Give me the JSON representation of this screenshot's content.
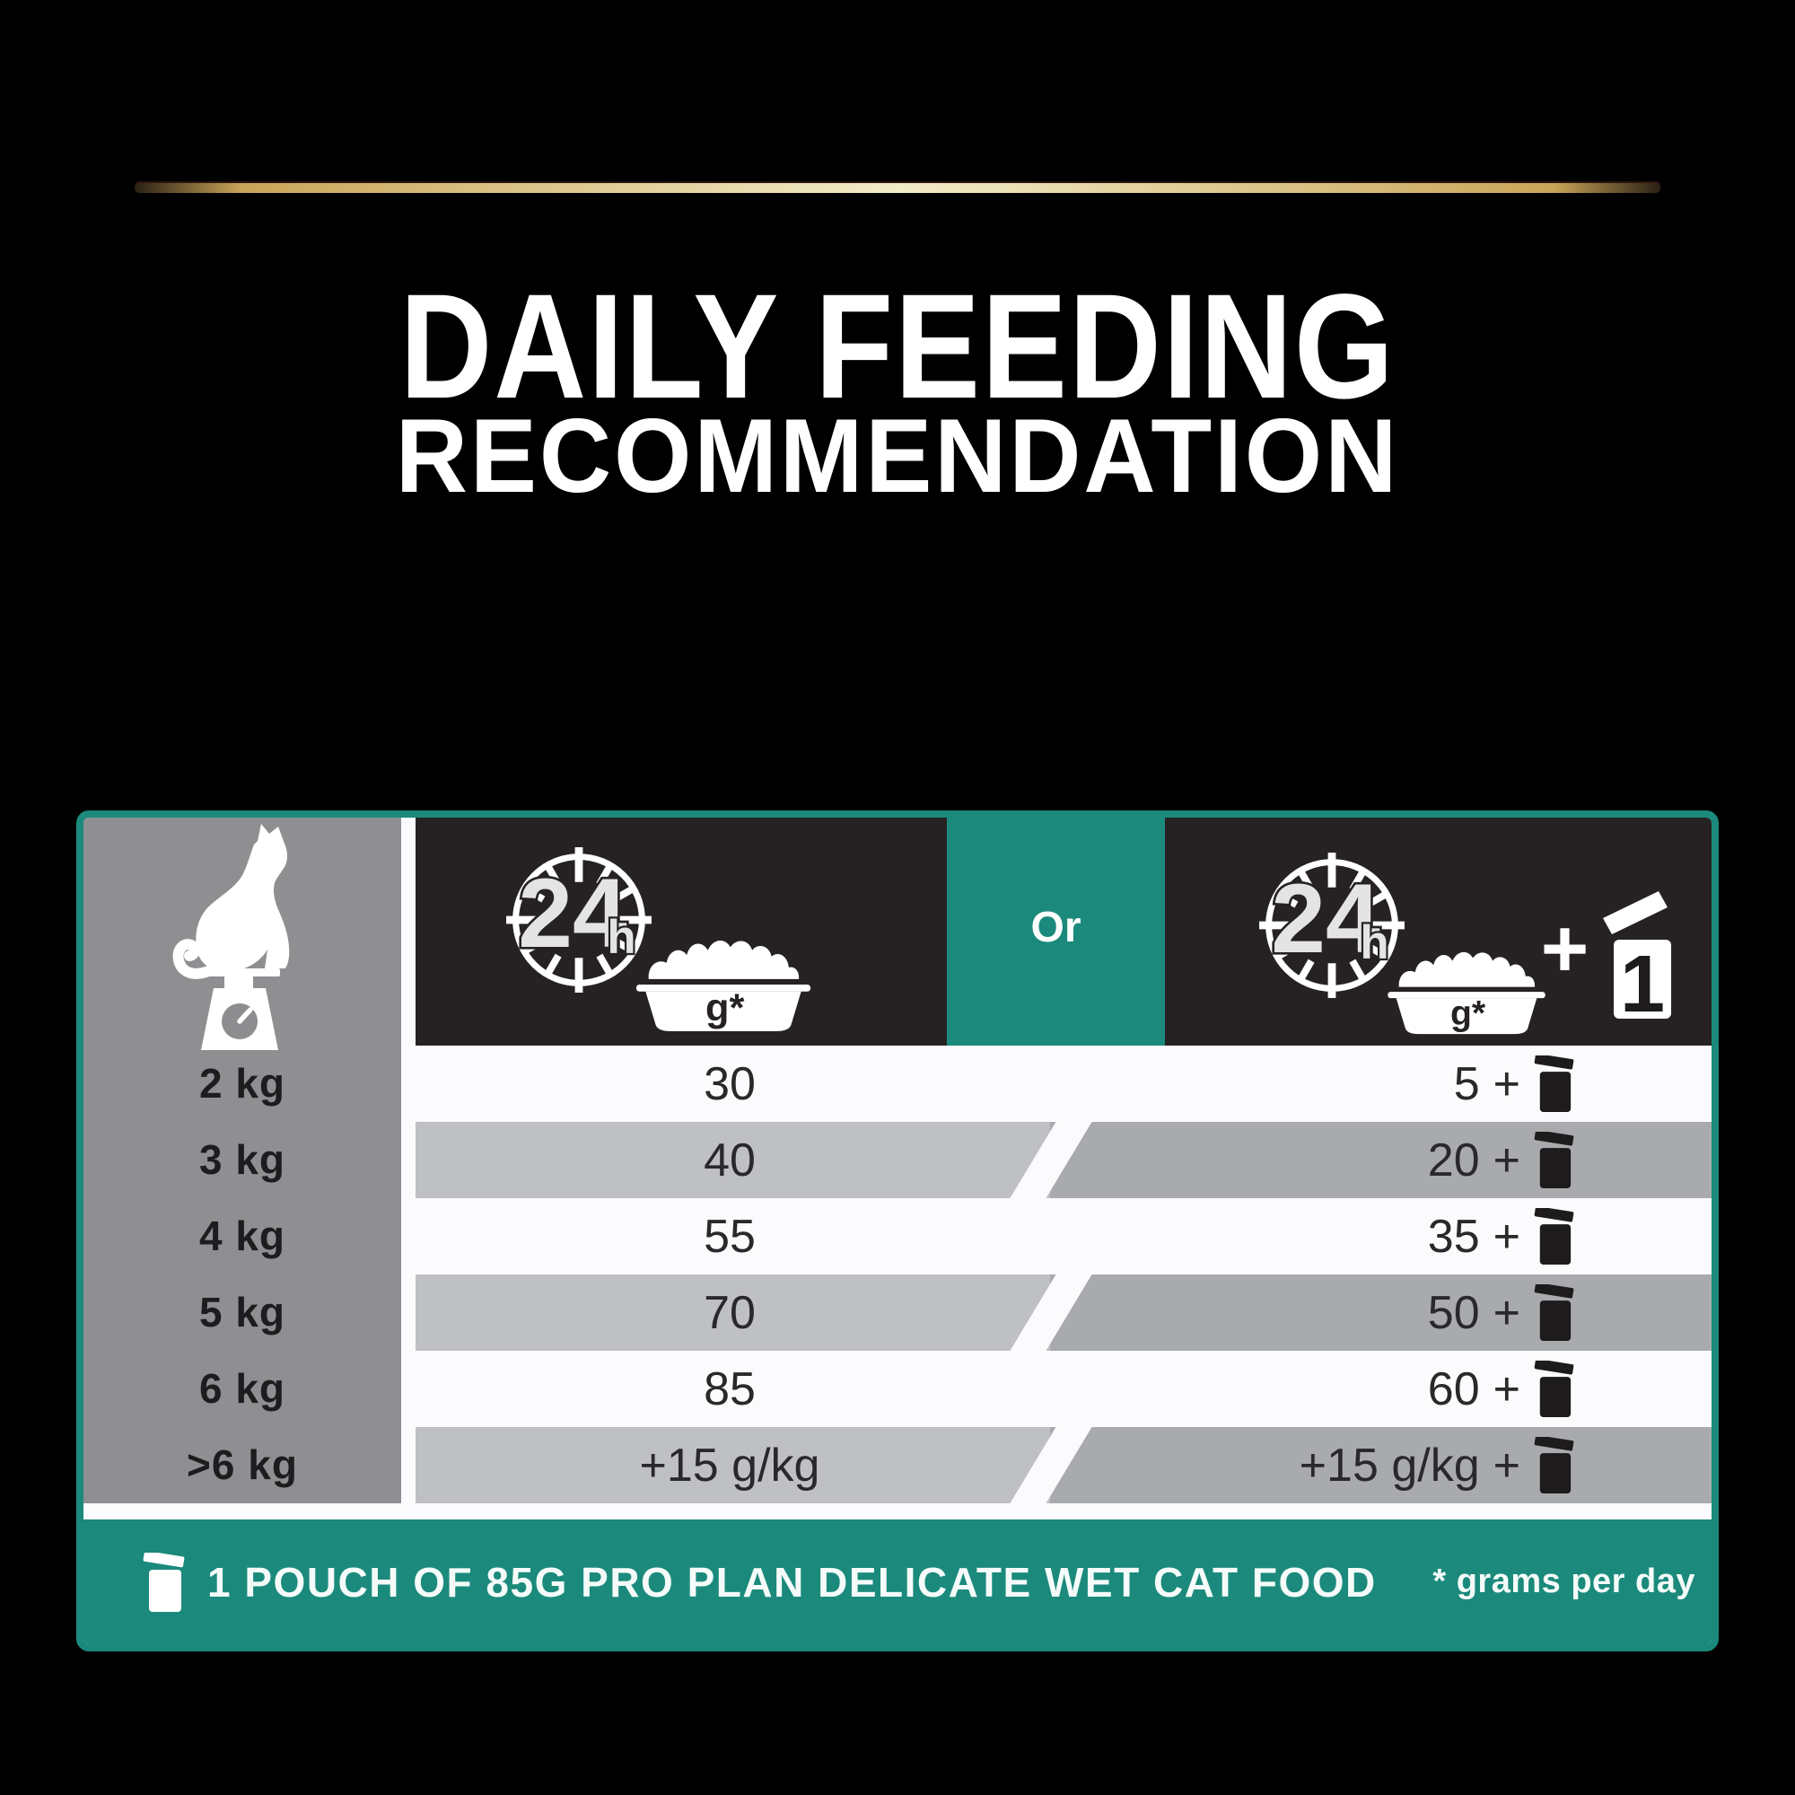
{
  "title": {
    "line1": "DAILY FEEDING",
    "line2": "RECOMMENDATION"
  },
  "table": {
    "header": {
      "or_label": "Or",
      "clock_label": "24",
      "clock_unit": "h",
      "bowl_unit": "g*",
      "pouch_count": "1"
    },
    "wet_plus": "+",
    "rows": [
      {
        "weight": "2 kg",
        "dry": "30",
        "dry_wet": "5",
        "shaded": false
      },
      {
        "weight": "3 kg",
        "dry": "40",
        "dry_wet": "20",
        "shaded": true
      },
      {
        "weight": "4 kg",
        "dry": "55",
        "dry_wet": "35",
        "shaded": false
      },
      {
        "weight": "5 kg",
        "dry": "70",
        "dry_wet": "50",
        "shaded": true
      },
      {
        "weight": "6 kg",
        "dry": "85",
        "dry_wet": "60",
        "shaded": false
      },
      {
        "weight": ">6 kg",
        "dry": "+15 g/kg",
        "dry_wet": "+15 g/kg",
        "shaded": true
      }
    ],
    "footer": {
      "pouch_note": "1 POUCH OF 85G PRO PLAN DELICATE WET CAT FOOD",
      "unit_note": "* grams per day"
    }
  },
  "chart_data": {
    "type": "table",
    "title": "DAILY FEEDING RECOMMENDATION",
    "columns": [
      "Cat weight",
      "Dry food only (grams per day)",
      "Dry food (grams per day) + 1 pouch of wet food"
    ],
    "rows": [
      [
        "2 kg",
        "30",
        "5 + 1 pouch"
      ],
      [
        "3 kg",
        "40",
        "20 + 1 pouch"
      ],
      [
        "4 kg",
        "55",
        "35 + 1 pouch"
      ],
      [
        "5 kg",
        "70",
        "50 + 1 pouch"
      ],
      [
        "6 kg",
        "85",
        "60 + 1 pouch"
      ],
      [
        ">6 kg",
        "+15 g/kg",
        "+15 g/kg + 1 pouch"
      ]
    ],
    "notes": [
      "1 POUCH OF 85G PRO PLAN DELICATE WET CAT FOOD",
      "* grams per day"
    ]
  },
  "colors": {
    "teal": "#1b8a7c",
    "header_cell": "#262224",
    "weight_column": "#8f8f92",
    "row_shade_left": "#bfc0c3",
    "row_shade_right": "#a8aaad",
    "gold": "#e3c77b"
  }
}
